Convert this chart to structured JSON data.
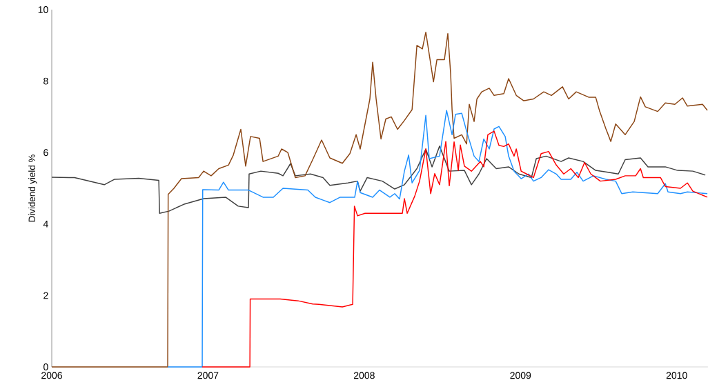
{
  "chart_data": {
    "type": "line",
    "ylabel": "Dividend yield %",
    "xlim": [
      2006,
      2010.2
    ],
    "xticks": [
      2006,
      2007,
      2008,
      2009,
      2010
    ],
    "ylim": [
      0,
      10
    ],
    "yticks": [
      0,
      2,
      4,
      6,
      8,
      10
    ],
    "grid": false,
    "series": [
      {
        "color": "#404040",
        "x": [
          2006.0,
          2006.11,
          2006.146,
          2006.336,
          2006.4,
          2006.557,
          2006.685,
          2006.69,
          2006.75,
          2006.844,
          2006.972,
          2007.113,
          2007.193,
          2007.259,
          2007.263,
          2007.338,
          2007.449,
          2007.48,
          2007.528,
          2007.559,
          2007.656,
          2007.736,
          2007.78,
          2007.895,
          2007.957,
          2007.974,
          2008.019,
          2008.116,
          2008.195,
          2008.257,
          2008.337,
          2008.394,
          2008.434,
          2008.482,
          2008.544,
          2008.641,
          2008.686,
          2008.734,
          2008.783,
          2008.845,
          2008.924,
          2008.99,
          2009.07,
          2009.101,
          2009.163,
          2009.26,
          2009.308,
          2009.401,
          2009.481,
          2009.56,
          2009.626,
          2009.67,
          2009.768,
          2009.816,
          2009.927,
          2010.006,
          2010.103,
          2010.183
        ],
        "values": [
          5.31,
          5.3,
          5.3,
          5.1,
          5.25,
          5.28,
          5.22,
          4.3,
          4.36,
          4.55,
          4.71,
          4.75,
          4.5,
          4.46,
          5.4,
          5.48,
          5.42,
          5.35,
          5.69,
          5.35,
          5.4,
          5.3,
          5.08,
          5.15,
          5.2,
          4.92,
          5.3,
          5.2,
          4.98,
          5.1,
          5.55,
          6.1,
          5.6,
          6.18,
          5.48,
          5.5,
          5.1,
          5.4,
          5.83,
          5.55,
          5.6,
          5.4,
          5.3,
          5.83,
          5.9,
          5.75,
          5.85,
          5.75,
          5.5,
          5.45,
          5.4,
          5.8,
          5.85,
          5.6,
          5.6,
          5.5,
          5.48,
          5.37
        ]
      },
      {
        "color": "#8b4513",
        "x": [
          2006.0,
          2006.742,
          2006.745,
          2006.782,
          2006.83,
          2006.94,
          2006.972,
          2007.02,
          2007.069,
          2007.131,
          2007.162,
          2007.21,
          2007.241,
          2007.272,
          2007.33,
          2007.352,
          2007.449,
          2007.471,
          2007.511,
          2007.559,
          2007.621,
          2007.67,
          2007.727,
          2007.78,
          2007.86,
          2007.908,
          2007.948,
          2007.974,
          2008.036,
          2008.054,
          2008.076,
          2008.107,
          2008.138,
          2008.173,
          2008.213,
          2008.257,
          2008.306,
          2008.337,
          2008.372,
          2008.394,
          2008.443,
          2008.465,
          2008.513,
          2008.535,
          2008.553,
          2008.562,
          2008.575,
          2008.624,
          2008.655,
          2008.672,
          2008.703,
          2008.721,
          2008.752,
          2008.8,
          2008.831,
          2008.893,
          2008.924,
          2008.973,
          2009.021,
          2009.083,
          2009.149,
          2009.198,
          2009.269,
          2009.308,
          2009.357,
          2009.436,
          2009.481,
          2009.507,
          2009.547,
          2009.578,
          2009.609,
          2009.67,
          2009.728,
          2009.768,
          2009.799,
          2009.878,
          2009.927,
          2009.988,
          2010.037,
          2010.068,
          2010.165,
          2010.196
        ],
        "values": [
          0,
          0,
          4.83,
          5.0,
          5.27,
          5.3,
          5.48,
          5.35,
          5.55,
          5.65,
          5.93,
          6.65,
          5.62,
          6.45,
          6.4,
          5.75,
          5.9,
          6.1,
          6.0,
          5.3,
          5.35,
          5.8,
          6.35,
          5.85,
          5.7,
          5.97,
          6.5,
          6.1,
          7.5,
          8.53,
          7.5,
          6.38,
          6.94,
          7.0,
          6.65,
          6.9,
          7.2,
          9.0,
          8.9,
          9.37,
          7.98,
          8.6,
          8.6,
          9.33,
          8.2,
          7.2,
          6.4,
          6.5,
          6.24,
          7.35,
          6.87,
          7.5,
          7.7,
          7.8,
          7.6,
          7.65,
          8.07,
          7.6,
          7.45,
          7.5,
          7.7,
          7.6,
          7.84,
          7.5,
          7.7,
          7.55,
          7.55,
          7.15,
          6.66,
          6.31,
          6.8,
          6.5,
          6.87,
          7.56,
          7.28,
          7.15,
          7.39,
          7.35,
          7.53,
          7.3,
          7.35,
          7.18
        ]
      },
      {
        "color": "#1e90ff",
        "x": [
          2006.742,
          2006.963,
          2006.966,
          2007.069,
          2007.099,
          2007.131,
          2007.259,
          2007.352,
          2007.418,
          2007.48,
          2007.639,
          2007.687,
          2007.736,
          2007.78,
          2007.846,
          2007.939,
          2007.957,
          2007.974,
          2008.054,
          2008.098,
          2008.164,
          2008.195,
          2008.226,
          2008.257,
          2008.284,
          2008.306,
          2008.354,
          2008.394,
          2008.416,
          2008.482,
          2008.527,
          2008.562,
          2008.584,
          2008.624,
          2008.655,
          2008.703,
          2008.734,
          2008.765,
          2008.8,
          2008.831,
          2008.862,
          2008.902,
          2008.924,
          2008.959,
          2009.004,
          2009.052,
          2009.083,
          2009.132,
          2009.18,
          2009.229,
          2009.26,
          2009.322,
          2009.361,
          2009.401,
          2009.467,
          2009.547,
          2009.609,
          2009.648,
          2009.719,
          2009.878,
          2009.927,
          2009.944,
          2010.024,
          2010.068,
          2010.196
        ],
        "values": [
          0,
          0,
          4.96,
          4.95,
          5.17,
          4.95,
          4.95,
          4.75,
          4.75,
          5.0,
          4.95,
          4.75,
          4.67,
          4.6,
          4.75,
          4.75,
          5.2,
          4.88,
          4.75,
          4.95,
          4.75,
          4.85,
          4.7,
          5.48,
          5.93,
          5.15,
          5.5,
          7.04,
          5.83,
          5.9,
          7.18,
          6.5,
          7.07,
          7.1,
          6.6,
          5.9,
          5.75,
          6.38,
          6.1,
          6.66,
          6.73,
          6.45,
          5.9,
          5.48,
          5.27,
          5.4,
          5.2,
          5.3,
          5.52,
          5.4,
          5.25,
          5.25,
          5.45,
          5.2,
          5.35,
          5.25,
          5.2,
          4.85,
          4.9,
          4.85,
          5.13,
          4.9,
          4.85,
          4.9,
          4.85
        ]
      },
      {
        "color": "#ff0000",
        "x": [
          2006.963,
          2007.268,
          2007.27,
          2007.462,
          2007.577,
          2007.67,
          2007.709,
          2007.86,
          2007.926,
          2007.937,
          2007.957,
          2008.005,
          2008.116,
          2008.244,
          2008.257,
          2008.275,
          2008.323,
          2008.354,
          2008.394,
          2008.425,
          2008.451,
          2008.482,
          2008.522,
          2008.544,
          2008.575,
          2008.602,
          2008.615,
          2008.641,
          2008.686,
          2008.743,
          2008.765,
          2008.791,
          2008.831,
          2008.862,
          2008.893,
          2008.924,
          2008.959,
          2008.973,
          2009.004,
          2009.039,
          2009.083,
          2009.132,
          2009.18,
          2009.229,
          2009.277,
          2009.322,
          2009.37,
          2009.41,
          2009.45,
          2009.511,
          2009.609,
          2009.67,
          2009.737,
          2009.768,
          2009.786,
          2009.896,
          2009.927,
          2010.024,
          2010.068,
          2010.103,
          2010.196
        ],
        "values": [
          0,
          0,
          1.9,
          1.9,
          1.85,
          1.76,
          1.75,
          1.68,
          1.75,
          4.5,
          4.23,
          4.3,
          4.3,
          4.3,
          4.71,
          4.3,
          4.78,
          5.2,
          6.1,
          4.85,
          5.41,
          5.1,
          6.31,
          5.07,
          6.3,
          5.5,
          6.21,
          5.62,
          5.48,
          5.75,
          5.6,
          6.5,
          6.6,
          6.2,
          6.17,
          6.24,
          5.9,
          6.1,
          5.48,
          5.4,
          5.3,
          5.97,
          6.03,
          5.65,
          5.4,
          5.55,
          5.3,
          5.72,
          5.4,
          5.2,
          5.25,
          5.35,
          5.35,
          5.55,
          5.3,
          5.3,
          5.05,
          5.0,
          5.15,
          4.92,
          4.75
        ]
      }
    ]
  }
}
